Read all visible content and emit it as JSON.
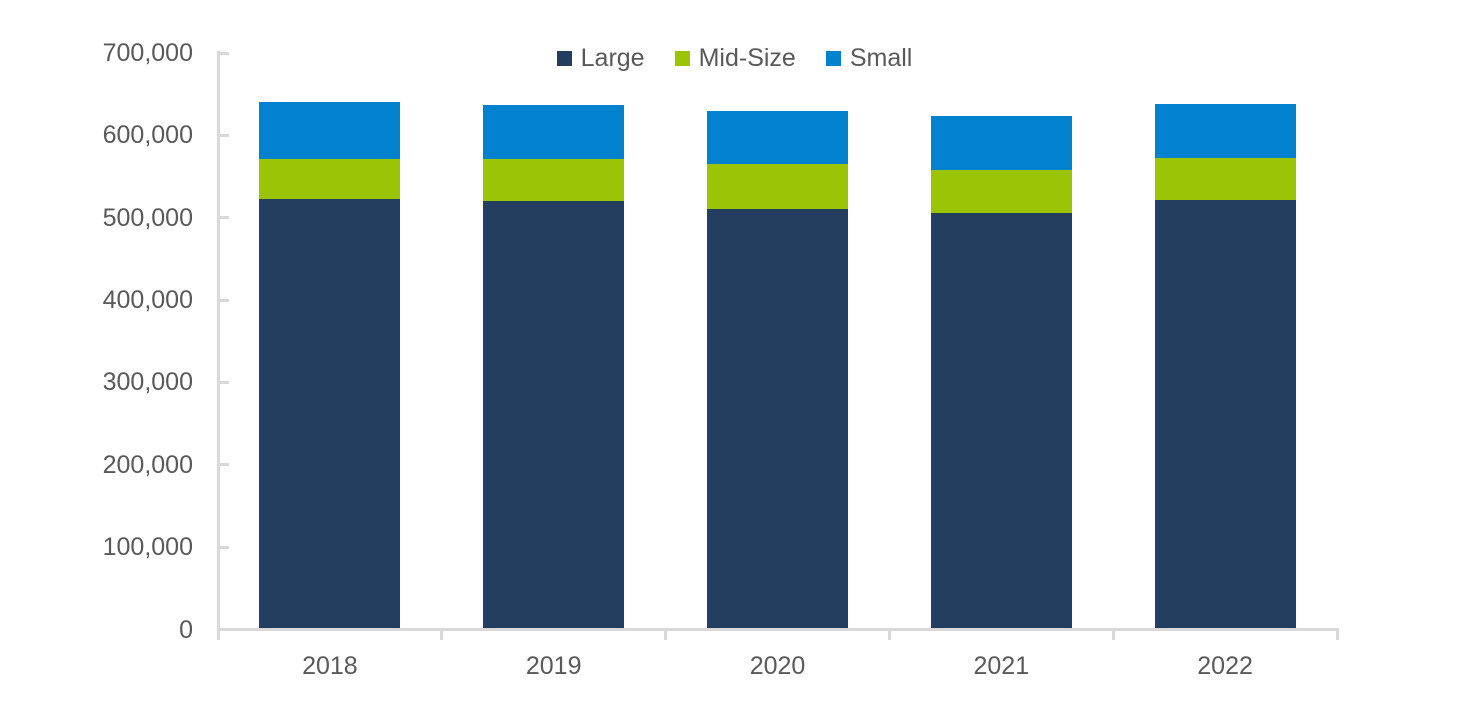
{
  "chart_data": {
    "type": "bar",
    "stacked": true,
    "title": "",
    "xlabel": "",
    "ylabel": "",
    "categories": [
      "2018",
      "2019",
      "2020",
      "2021",
      "2022"
    ],
    "series": [
      {
        "name": "Large",
        "color": "#243E5F",
        "values": [
          523000,
          520000,
          510000,
          506000,
          522000
        ]
      },
      {
        "name": "Mid-Size",
        "color": "#9CC406",
        "values": [
          48000,
          51000,
          55000,
          52000,
          50000
        ]
      },
      {
        "name": "Small",
        "color": "#0282CE",
        "values": [
          70000,
          66000,
          65000,
          66000,
          66000
        ]
      }
    ],
    "totals": [
      641000,
      637000,
      630000,
      624000,
      638000
    ],
    "ylim": [
      0,
      700000
    ],
    "ytick_step": 100000,
    "ytick_labels": [
      "0",
      "100,000",
      "200,000",
      "300,000",
      "400,000",
      "500,000",
      "600,000",
      "700,000"
    ],
    "legend_position": "top",
    "grid": false,
    "colors": {
      "axis": "#D9D9D9",
      "text": "#595959",
      "background": "#FFFFFF"
    }
  }
}
